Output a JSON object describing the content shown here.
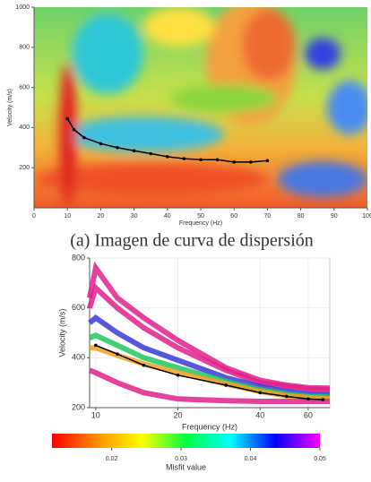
{
  "chart_data": [
    {
      "type": "line",
      "caption": "(a) Imagen de curva de dispersión",
      "xlabel": "Frequency (Hz)",
      "ylabel": "Velocity (m/s)",
      "xlim": [
        0,
        100
      ],
      "xticks": [
        0,
        10,
        20,
        30,
        40,
        50,
        60,
        70,
        80,
        90,
        100
      ],
      "ylim": [
        0,
        1000
      ],
      "yticks": [
        200,
        400,
        600,
        800,
        1000
      ],
      "series": [
        {
          "color": "#000000",
          "x": [
            10,
            12,
            15,
            20,
            25,
            30,
            35,
            40,
            45,
            50,
            55,
            60,
            65,
            70
          ],
          "values": [
            445,
            390,
            350,
            320,
            300,
            285,
            270,
            255,
            245,
            240,
            240,
            228,
            228,
            235
          ]
        }
      ]
    },
    {
      "type": "line",
      "xlabel": "Frequency (Hz)",
      "ylabel": "Velocity (m/s)",
      "xscale": "log",
      "grid": true,
      "xlim": [
        9.5,
        72
      ],
      "xticks": [
        10,
        20,
        40,
        60
      ],
      "ylim": [
        200,
        800
      ],
      "yticks": [
        200,
        400,
        600,
        800
      ],
      "series": [
        {
          "color": "#e0208c",
          "x": [
            9.5,
            10,
            12,
            15,
            20,
            30,
            40,
            50,
            60,
            72
          ],
          "values": [
            640,
            760,
            640,
            560,
            470,
            360,
            310,
            290,
            280,
            278
          ]
        },
        {
          "color": "#e0208c",
          "x": [
            9.5,
            10,
            12,
            15,
            20,
            30,
            40,
            50,
            60,
            72
          ],
          "values": [
            600,
            680,
            600,
            520,
            440,
            350,
            300,
            285,
            275,
            272
          ]
        },
        {
          "color": "#3a3ad8",
          "x": [
            9.5,
            10,
            12,
            15,
            20,
            30,
            40,
            50,
            60,
            72
          ],
          "values": [
            540,
            560,
            500,
            440,
            390,
            320,
            285,
            265,
            255,
            252
          ]
        },
        {
          "color": "#20c860",
          "x": [
            9.5,
            10,
            12,
            15,
            20,
            30,
            40,
            50,
            60,
            72
          ],
          "values": [
            480,
            490,
            450,
            400,
            360,
            305,
            272,
            255,
            245,
            242
          ]
        },
        {
          "color": "#f0a020",
          "x": [
            9.5,
            10,
            12,
            15,
            20,
            30,
            40,
            50,
            60,
            72
          ],
          "values": [
            440,
            440,
            410,
            375,
            340,
            295,
            265,
            248,
            240,
            236
          ]
        },
        {
          "color": "#e0208c",
          "x": [
            9.5,
            10,
            12,
            15,
            20,
            30,
            40,
            50,
            60,
            72
          ],
          "values": [
            350,
            340,
            300,
            260,
            235,
            228,
            225,
            225,
            225,
            225
          ]
        },
        {
          "color": "#000000",
          "x": [
            10,
            12,
            15,
            20,
            30,
            40,
            50,
            60,
            68
          ],
          "values": [
            450,
            415,
            370,
            330,
            290,
            260,
            245,
            235,
            232
          ]
        }
      ]
    },
    {
      "type": "colorbar",
      "xlabel": "Misfit value",
      "clim": [
        0.0114,
        0.05
      ],
      "ticks": [
        0.02,
        0.03,
        0.04,
        0.05
      ],
      "colors": [
        "#ff0000",
        "#ff8c00",
        "#ffff00",
        "#00ff40",
        "#00ffff",
        "#0000ff",
        "#ff00ff"
      ]
    }
  ]
}
